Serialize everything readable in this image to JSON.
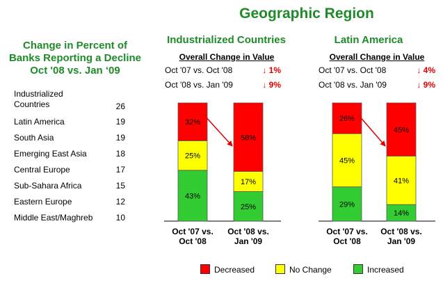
{
  "main_title": "Geographic Region",
  "left_title": [
    "Change in Percent of",
    "Banks Reporting a Decline",
    "Oct '08 vs. Jan ‘09"
  ],
  "regions": [
    {
      "name": "Industrialized Countries",
      "value": "26"
    },
    {
      "name": "Latin America",
      "value": "19"
    },
    {
      "name": "South Asia",
      "value": "19"
    },
    {
      "name": "Emerging East Asia",
      "value": "18"
    },
    {
      "name": "Central Europe",
      "value": "17"
    },
    {
      "name": "Sub-Sahara Africa",
      "value": "15"
    },
    {
      "name": "Eastern Europe",
      "value": "12"
    },
    {
      "name": "Middle East/Maghreb",
      "value": "10"
    }
  ],
  "overall_label": "Overall Change in Value",
  "colors": {
    "decreased": "#ff0000",
    "no_change": "#ffff00",
    "increased": "#33cc33",
    "title_green": "#1f8a2a",
    "arrow": "#e00000"
  },
  "chart_data": [
    {
      "type": "bar",
      "stacked": true,
      "title": "Industrialized Countries",
      "categories": [
        "Oct '07 vs. Oct '08",
        "Oct '08 vs. Jan '09"
      ],
      "series": [
        {
          "name": "Increased",
          "values": [
            43,
            25
          ]
        },
        {
          "name": "No Change",
          "values": [
            25,
            17
          ]
        },
        {
          "name": "Decreased",
          "values": [
            32,
            58
          ]
        }
      ],
      "overall_change": [
        {
          "label": "Oct '07 vs. Oct '08",
          "value": "↓ 1%"
        },
        {
          "label": "Oct '08 vs. Jan '09",
          "value": "↓ 9%"
        }
      ],
      "ylim": [
        0,
        100
      ],
      "legend": "bottom"
    },
    {
      "type": "bar",
      "stacked": true,
      "title": "Latin America",
      "categories": [
        "Oct '07 vs. Oct '08",
        "Oct '08 vs. Jan '09"
      ],
      "series": [
        {
          "name": "Increased",
          "values": [
            29,
            14
          ]
        },
        {
          "name": "No Change",
          "values": [
            45,
            41
          ]
        },
        {
          "name": "Decreased",
          "values": [
            26,
            45
          ]
        }
      ],
      "overall_change": [
        {
          "label": "Oct '07 vs. Oct '08",
          "value": "↓ 4%"
        },
        {
          "label": "Oct '08 vs. Jan '09",
          "value": "↓ 9%"
        }
      ],
      "ylim": [
        0,
        100
      ],
      "legend": "bottom"
    }
  ],
  "category_lines": [
    [
      "Oct '07 vs.",
      "Oct '08"
    ],
    [
      "Oct '08 vs.",
      "Jan '09"
    ]
  ],
  "legend": [
    {
      "name": "Decreased",
      "color": "#ff0000"
    },
    {
      "name": "No Change",
      "color": "#ffff00"
    },
    {
      "name": "Increased",
      "color": "#33cc33"
    }
  ]
}
